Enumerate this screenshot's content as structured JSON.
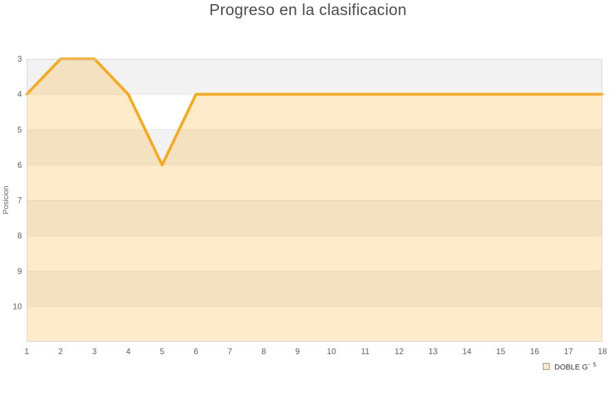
{
  "page": {
    "background": "#ffffff"
  },
  "chart_data": {
    "type": "area",
    "title": "Progreso en la clasificacion",
    "xlabel": "",
    "ylabel": "Posicion",
    "x": [
      1,
      2,
      3,
      4,
      5,
      6,
      7,
      8,
      9,
      10,
      11,
      12,
      13,
      14,
      15,
      16,
      17,
      18
    ],
    "series": [
      {
        "name": "DOBLE G´5",
        "values": [
          4,
          3,
          3,
          4,
          6,
          4,
          4,
          4,
          4,
          4,
          4,
          4,
          4,
          4,
          4,
          4,
          4,
          4
        ]
      }
    ],
    "y_axis": {
      "label": "Posicion",
      "min": 3,
      "max": 11,
      "inverted": true,
      "ticks": [
        3,
        4,
        5,
        6,
        7,
        8,
        9,
        10
      ]
    },
    "x_axis": {
      "min": 1,
      "max": 18,
      "ticks": [
        1,
        2,
        3,
        4,
        5,
        6,
        7,
        8,
        9,
        10,
        11,
        12,
        13,
        14,
        15,
        16,
        17,
        18
      ]
    },
    "grid": {
      "horizontal_bands": "alternating",
      "vertical_gridlines": false
    },
    "legend": {
      "position": "bottom-right",
      "label": "DOBLE G´",
      "superscript": "5"
    },
    "colors": {
      "line": "#f9a81c",
      "area_fill": "rgba(248, 175, 40, 0.25)",
      "band_dark": "#f2f2f2",
      "band_light": "#ffffff",
      "gridline": "#e4e4e4",
      "frame": "#d6d6d6",
      "tick_text": "#5e5e5e",
      "title_text": "#4c4c4c"
    }
  }
}
